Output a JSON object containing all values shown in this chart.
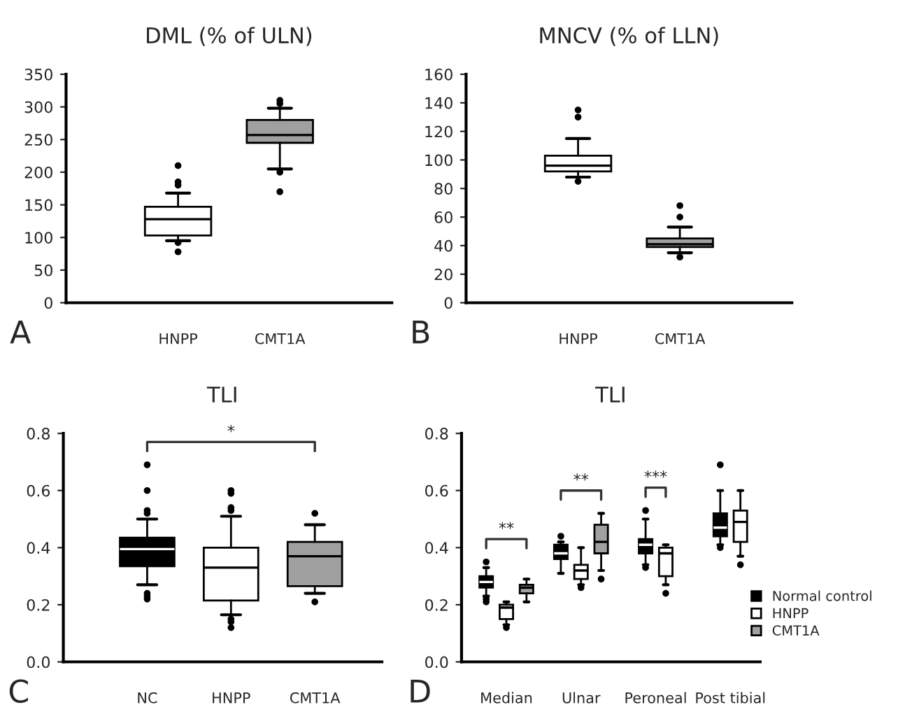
{
  "chart_data": [
    {
      "type": "box",
      "title": "DML (% of ULN)",
      "categories": [
        "HNPP",
        "CMT1A"
      ],
      "colors": [
        "#ffffff",
        "#a0a0a0"
      ],
      "boxes": [
        {
          "low": 95,
          "q1": 103,
          "median": 128,
          "q3": 147,
          "high": 168,
          "outliers": [
            78,
            92,
            180,
            185,
            210
          ]
        },
        {
          "low": 205,
          "q1": 245,
          "median": 257,
          "q3": 280,
          "high": 298,
          "outliers": [
            170,
            200,
            305,
            310
          ]
        }
      ],
      "ylim": [
        0,
        350
      ],
      "yticks": [
        0,
        50,
        100,
        150,
        200,
        250,
        300,
        350
      ],
      "annotations": [
        "A"
      ],
      "grid": false
    },
    {
      "type": "box",
      "title": "MNCV (% of LLN)",
      "categories": [
        "HNPP",
        "CMT1A"
      ],
      "colors": [
        "#ffffff",
        "#a0a0a0"
      ],
      "boxes": [
        {
          "low": 88,
          "q1": 92,
          "median": 96,
          "q3": 103,
          "high": 115,
          "outliers": [
            85,
            130,
            135
          ]
        },
        {
          "low": 35,
          "q1": 39,
          "median": 41,
          "q3": 45,
          "high": 53,
          "outliers": [
            32,
            60,
            68
          ]
        }
      ],
      "ylim": [
        0,
        160
      ],
      "yticks": [
        0,
        20,
        40,
        60,
        80,
        100,
        120,
        140,
        160
      ],
      "annotations": [
        "B"
      ],
      "grid": false
    },
    {
      "type": "box",
      "title": "TLI",
      "categories": [
        "NC",
        "HNPP",
        "CMT1A"
      ],
      "colors": [
        "#000000",
        "#ffffff",
        "#a0a0a0"
      ],
      "boxes": [
        {
          "low": 0.27,
          "q1": 0.335,
          "median": 0.395,
          "q3": 0.435,
          "high": 0.5,
          "outliers": [
            0.22,
            0.23,
            0.24,
            0.52,
            0.53,
            0.6,
            0.69
          ]
        },
        {
          "low": 0.165,
          "q1": 0.215,
          "median": 0.33,
          "q3": 0.4,
          "high": 0.51,
          "outliers": [
            0.12,
            0.14,
            0.15,
            0.53,
            0.54,
            0.59,
            0.6
          ]
        },
        {
          "low": 0.24,
          "q1": 0.265,
          "median": 0.37,
          "q3": 0.42,
          "high": 0.48,
          "outliers": [
            0.21,
            0.52
          ]
        }
      ],
      "ylim": [
        0.0,
        0.8
      ],
      "yticks": [
        {
          "value": 0.0,
          "label": "0.0"
        },
        0.2,
        0.4,
        0.6,
        0.8
      ],
      "annotations": [
        "*",
        "C"
      ],
      "grid": false
    },
    {
      "type": "box",
      "title": "TLI",
      "categories": [
        "Median",
        "Ulnar",
        "Peroneal",
        "Post tibial"
      ],
      "series": [
        {
          "name": "Normal control",
          "color": "#000000",
          "boxes": [
            {
              "low": 0.23,
              "q1": 0.26,
              "median": 0.28,
              "q3": 0.3,
              "high": 0.33,
              "outliers": [
                0.21,
                0.22,
                0.35
              ]
            },
            {
              "low": 0.31,
              "q1": 0.36,
              "median": 0.38,
              "q3": 0.41,
              "high": 0.42,
              "outliers": [
                0.44
              ]
            },
            {
              "low": 0.34,
              "q1": 0.38,
              "median": 0.41,
              "q3": 0.43,
              "high": 0.5,
              "outliers": [
                0.33,
                0.53
              ]
            },
            {
              "low": 0.41,
              "q1": 0.44,
              "median": 0.47,
              "q3": 0.52,
              "high": 0.6,
              "outliers": [
                0.4,
                0.69
              ]
            }
          ]
        },
        {
          "name": "HNPP",
          "color": "#ffffff",
          "boxes": [
            {
              "low": 0.13,
              "q1": 0.15,
              "median": 0.19,
              "q3": 0.2,
              "high": 0.21,
              "outliers": [
                0.12
              ]
            },
            {
              "low": 0.27,
              "q1": 0.29,
              "median": 0.32,
              "q3": 0.34,
              "high": 0.4,
              "outliers": [
                0.26
              ]
            },
            {
              "low": 0.27,
              "q1": 0.3,
              "median": 0.38,
              "q3": 0.4,
              "high": 0.41,
              "outliers": [
                0.24
              ]
            },
            {
              "low": 0.37,
              "q1": 0.42,
              "median": 0.49,
              "q3": 0.53,
              "high": 0.6,
              "outliers": [
                0.34
              ]
            }
          ]
        },
        {
          "name": "CMT1A",
          "color": "#a0a0a0",
          "boxes": [
            {
              "low": 0.21,
              "q1": 0.24,
              "median": 0.26,
              "q3": 0.27,
              "high": 0.29
            },
            {
              "low": 0.32,
              "q1": 0.38,
              "median": 0.42,
              "q3": 0.48,
              "high": 0.52,
              "outliers": [
                0.29
              ]
            },
            null,
            null
          ]
        }
      ],
      "ylim": [
        0.0,
        0.8
      ],
      "yticks": [
        {
          "value": 0.0,
          "label": "0.0"
        },
        0.2,
        0.4,
        0.6,
        0.8
      ],
      "legend": "bottom right",
      "annotations": [
        "**",
        "**",
        "***",
        "D"
      ],
      "grid": false
    }
  ]
}
